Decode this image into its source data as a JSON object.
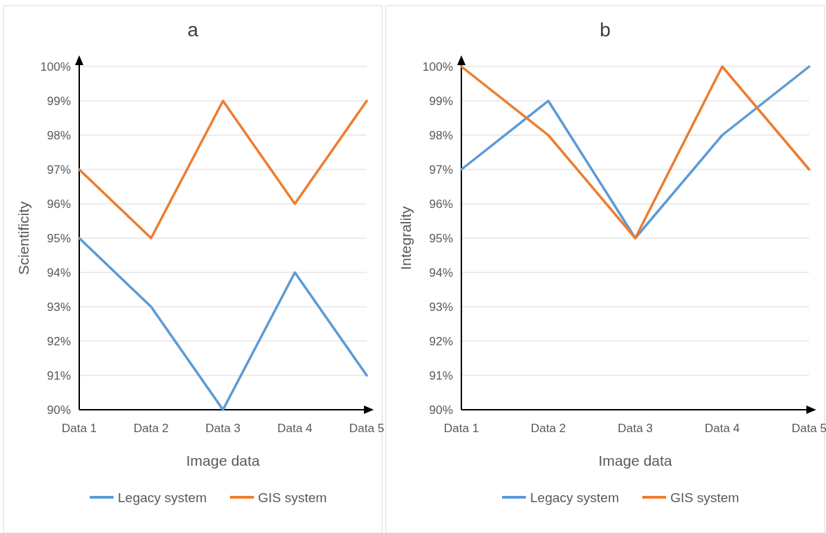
{
  "chart_data": [
    {
      "type": "line",
      "title": "a",
      "xlabel": "Image data",
      "ylabel": "Scientificity",
      "categories": [
        "Data 1",
        "Data 2",
        "Data 3",
        "Data 4",
        "Data 5"
      ],
      "series": [
        {
          "name": "Legacy system",
          "color": "#5b9bd5",
          "values": [
            95,
            93,
            90,
            94,
            91
          ]
        },
        {
          "name": "GIS system",
          "color": "#ed7d31",
          "values": [
            97,
            95,
            99,
            96,
            99
          ]
        }
      ],
      "ylim": [
        90,
        100
      ],
      "yticks": [
        {
          "value": 90,
          "label": "90%"
        },
        {
          "value": 91,
          "label": "91%"
        },
        {
          "value": 92,
          "label": "92%"
        },
        {
          "value": 93,
          "label": "93%"
        },
        {
          "value": 94,
          "label": "94%"
        },
        {
          "value": 95,
          "label": "95%"
        },
        {
          "value": 96,
          "label": "96%"
        },
        {
          "value": 97,
          "label": "97%"
        },
        {
          "value": 98,
          "label": "98%"
        },
        {
          "value": 99,
          "label": "99%"
        },
        {
          "value": 100,
          "label": "100%"
        }
      ],
      "grid": "y",
      "legend": "bottom",
      "marker": "none",
      "line_style": "solid"
    },
    {
      "type": "line",
      "title": "b",
      "xlabel": "Image data",
      "ylabel": "Integrality",
      "categories": [
        "Data 1",
        "Data 2",
        "Data 3",
        "Data 4",
        "Data 5"
      ],
      "series": [
        {
          "name": "Legacy system",
          "color": "#5b9bd5",
          "values": [
            97,
            99,
            95,
            98,
            100
          ]
        },
        {
          "name": "GIS system",
          "color": "#ed7d31",
          "values": [
            100,
            98,
            95,
            100,
            97
          ]
        }
      ],
      "ylim": [
        90,
        100
      ],
      "yticks": [
        {
          "value": 90,
          "label": "90%"
        },
        {
          "value": 91,
          "label": "91%"
        },
        {
          "value": 92,
          "label": "92%"
        },
        {
          "value": 93,
          "label": "93%"
        },
        {
          "value": 94,
          "label": "94%"
        },
        {
          "value": 95,
          "label": "95%"
        },
        {
          "value": 96,
          "label": "96%"
        },
        {
          "value": 97,
          "label": "97%"
        },
        {
          "value": 98,
          "label": "98%"
        },
        {
          "value": 99,
          "label": "99%"
        },
        {
          "value": 100,
          "label": "100%"
        }
      ],
      "grid": "y",
      "legend": "bottom",
      "marker": "none",
      "line_style": "solid"
    }
  ]
}
